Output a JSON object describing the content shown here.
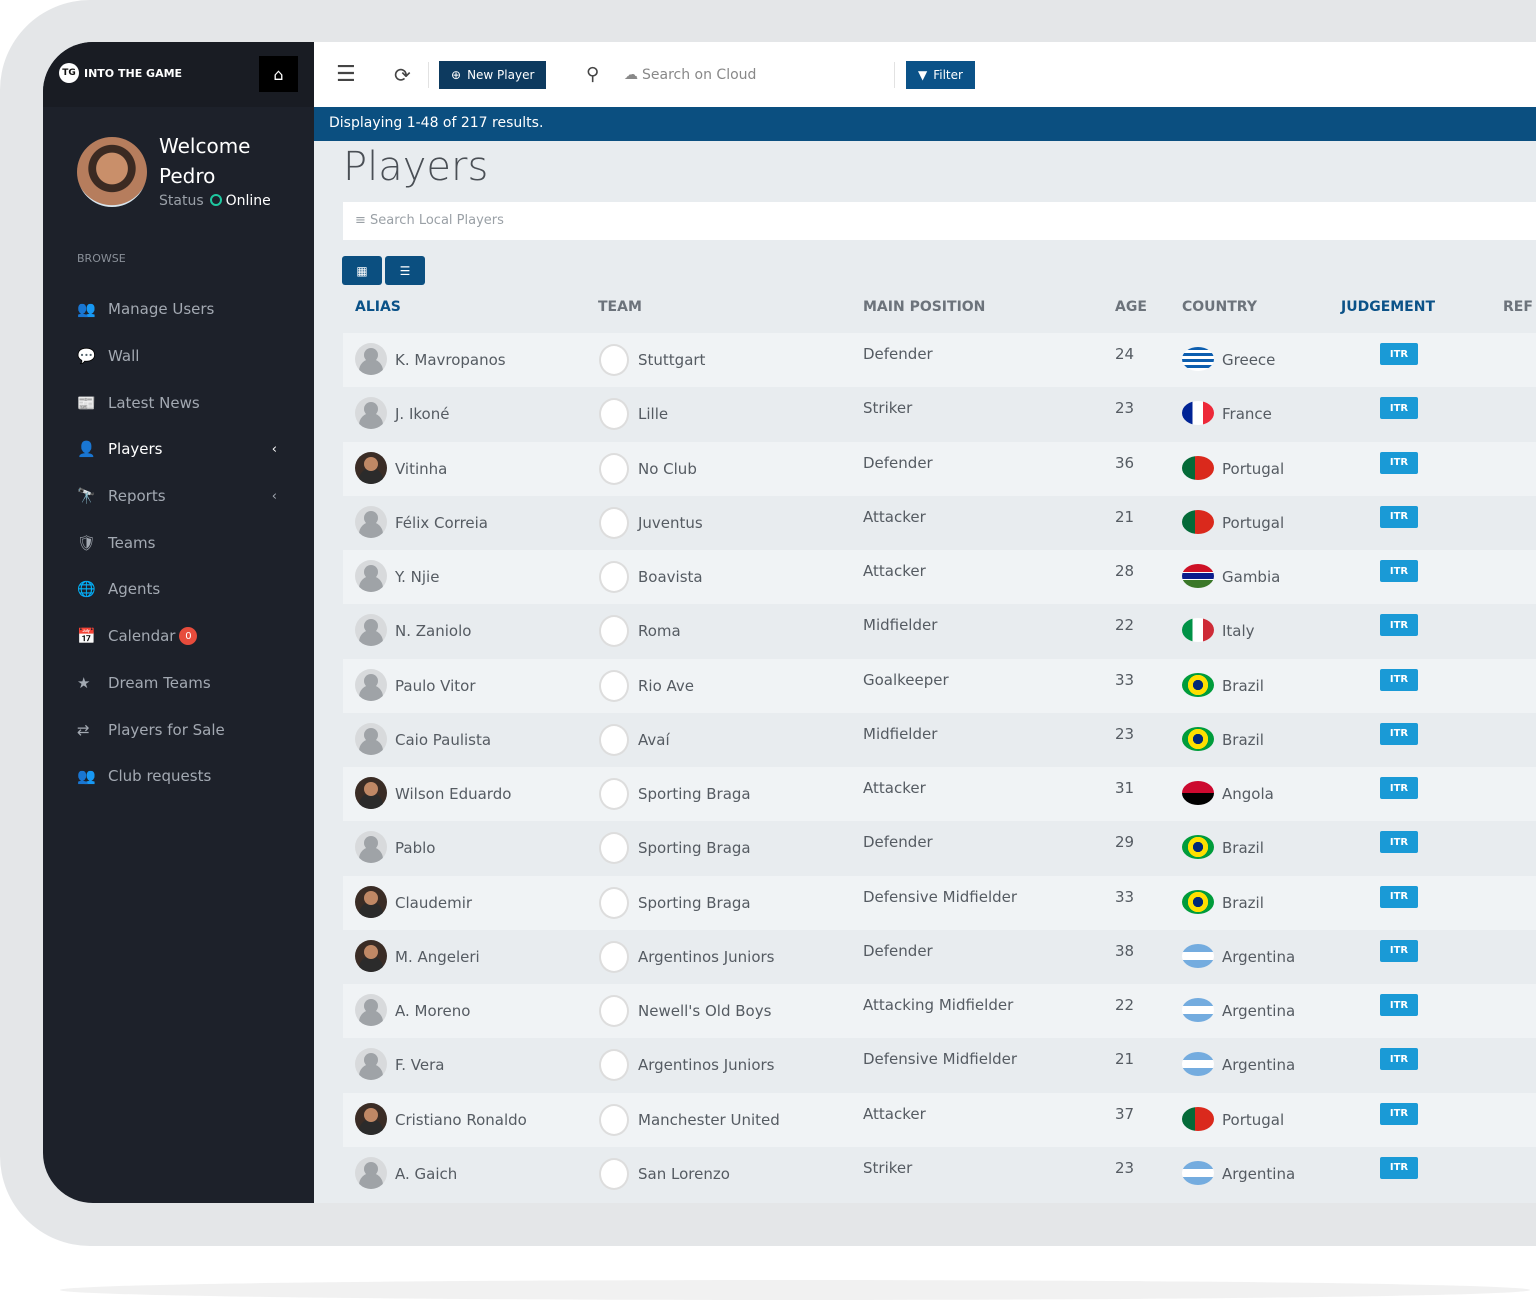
{
  "app": {
    "logo_text": "INTO THE GAME",
    "logo_mark": "TG"
  },
  "toolbar": {
    "new_player": "New Player",
    "search_cloud_placeholder": "Search on Cloud",
    "filter": "Filter"
  },
  "user": {
    "welcome": "Welcome",
    "name": "Pedro",
    "status_label": "Status",
    "status": "Online"
  },
  "sidebar": {
    "section": "BROWSE",
    "items": [
      {
        "label": "Manage Users",
        "icon": "user-plus-icon",
        "glyph": "👥"
      },
      {
        "label": "Wall",
        "icon": "comments-icon",
        "glyph": "💬"
      },
      {
        "label": "Latest News",
        "icon": "newspaper-icon",
        "glyph": "📰"
      },
      {
        "label": "Players",
        "icon": "user-icon",
        "glyph": "👤",
        "active": true,
        "chevron": true
      },
      {
        "label": "Reports",
        "icon": "binoculars-icon",
        "glyph": "🔭",
        "chevron": true
      },
      {
        "label": "Teams",
        "icon": "shield-icon",
        "glyph": "🛡"
      },
      {
        "label": "Agents",
        "icon": "globe-icon",
        "glyph": "🌐"
      },
      {
        "label": "Calendar",
        "icon": "calendar-icon",
        "glyph": "📅",
        "badge": "0"
      },
      {
        "label": "Dream Teams",
        "icon": "star-icon",
        "glyph": "★"
      },
      {
        "label": "Players for Sale",
        "icon": "exchange-icon",
        "glyph": "⇄"
      },
      {
        "label": "Club requests",
        "icon": "users-icon",
        "glyph": "👥"
      }
    ]
  },
  "results_text": "Displaying 1-48 of 217 results.",
  "page_title": "Players",
  "local_search_placeholder": "Search Local Players",
  "table": {
    "headers": [
      "ALIAS",
      "TEAM",
      "MAIN POSITION",
      "AGE",
      "COUNTRY",
      "JUDGEMENT",
      "REF"
    ],
    "rows": [
      {
        "alias": "K. Mavropanos",
        "team": "Stuttgart",
        "position": "Defender",
        "age": "24",
        "country": "Greece",
        "judgement": "ITR",
        "photo": false
      },
      {
        "alias": "J. Ikoné",
        "team": "Lille",
        "position": "Striker",
        "age": "23",
        "country": "France",
        "judgement": "ITR",
        "photo": false
      },
      {
        "alias": "Vitinha",
        "team": "No Club",
        "position": "Defender",
        "age": "36",
        "country": "Portugal",
        "judgement": "ITR",
        "photo": true
      },
      {
        "alias": "Félix Correia",
        "team": "Juventus",
        "position": "Attacker",
        "age": "21",
        "country": "Portugal",
        "judgement": "ITR",
        "photo": false
      },
      {
        "alias": "Y. Njie",
        "team": "Boavista",
        "position": "Attacker",
        "age": "28",
        "country": "Gambia",
        "judgement": "ITR",
        "photo": false
      },
      {
        "alias": "N. Zaniolo",
        "team": "Roma",
        "position": "Midfielder",
        "age": "22",
        "country": "Italy",
        "judgement": "ITR",
        "photo": false
      },
      {
        "alias": "Paulo Vitor",
        "team": "Rio Ave",
        "position": "Goalkeeper",
        "age": "33",
        "country": "Brazil",
        "judgement": "ITR",
        "photo": false
      },
      {
        "alias": "Caio Paulista",
        "team": "Avaí",
        "position": "Midfielder",
        "age": "23",
        "country": "Brazil",
        "judgement": "ITR",
        "photo": false
      },
      {
        "alias": "Wilson Eduardo",
        "team": "Sporting Braga",
        "position": "Attacker",
        "age": "31",
        "country": "Angola",
        "judgement": "ITR",
        "photo": true
      },
      {
        "alias": "Pablo",
        "team": "Sporting Braga",
        "position": "Defender",
        "age": "29",
        "country": "Brazil",
        "judgement": "ITR",
        "photo": false
      },
      {
        "alias": "Claudemir",
        "team": "Sporting Braga",
        "position": "Defensive Midfielder",
        "age": "33",
        "country": "Brazil",
        "judgement": "ITR",
        "photo": true
      },
      {
        "alias": "M. Angeleri",
        "team": "Argentinos Juniors",
        "position": "Defender",
        "age": "38",
        "country": "Argentina",
        "judgement": "ITR",
        "photo": true
      },
      {
        "alias": "A. Moreno",
        "team": "Newell's Old Boys",
        "position": "Attacking Midfielder",
        "age": "22",
        "country": "Argentina",
        "judgement": "ITR",
        "photo": false
      },
      {
        "alias": "F. Vera",
        "team": "Argentinos Juniors",
        "position": "Defensive Midfielder",
        "age": "21",
        "country": "Argentina",
        "judgement": "ITR",
        "photo": false
      },
      {
        "alias": "Cristiano Ronaldo",
        "team": "Manchester United",
        "position": "Attacker",
        "age": "37",
        "country": "Portugal",
        "judgement": "ITR",
        "photo": true
      },
      {
        "alias": "A. Gaich",
        "team": "San Lorenzo",
        "position": "Striker",
        "age": "23",
        "country": "Argentina",
        "judgement": "ITR",
        "photo": false
      }
    ]
  },
  "flag_colors": {
    "Greece": "repeating-linear-gradient(#0d5eaf 0 3px,#fff 3px 6px)",
    "France": "linear-gradient(90deg,#002395 33%,#fff 33% 66%,#ed2939 66%)",
    "Portugal": "linear-gradient(90deg,#046a38 40%,#da291c 40%)",
    "Gambia": "linear-gradient(#ce1126 33%,#fff 33% 38%,#0c1c8c 38% 62%,#fff 62% 67%,#3a7728 67%)",
    "Italy": "linear-gradient(90deg,#009246 33%,#fff 33% 66%,#ce2b37 66%)",
    "Brazil": "radial-gradient(circle,#002776 25%,#fedf00 26% 50%,#009c3b 51%)",
    "Angola": "linear-gradient(#cc092f 50%,#000 50%)",
    "Argentina": "linear-gradient(#74acdf 33%,#fff 33% 66%,#74acdf 66%)"
  },
  "colors": {
    "accent": "#0b4f80",
    "itr": "#1a9ad6",
    "sidebar": "#1d212a"
  }
}
